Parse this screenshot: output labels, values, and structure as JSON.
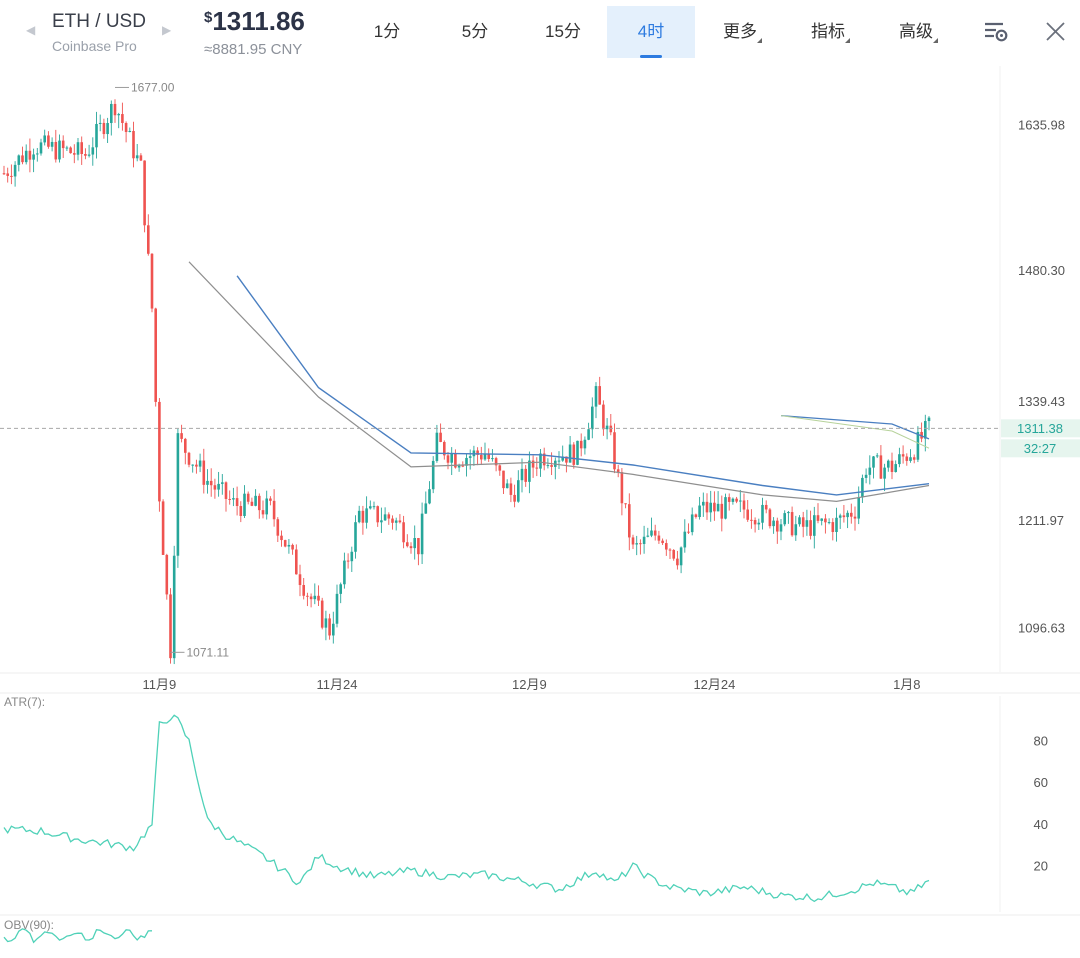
{
  "header": {
    "pair": "ETH / USD",
    "exchange": "Coinbase Pro",
    "currency_symbol": "$",
    "price": "1311.86",
    "converted": "≈8881.95 CNY",
    "timeframes": [
      {
        "label": "1分",
        "active": false,
        "dropdown": false
      },
      {
        "label": "5分",
        "active": false,
        "dropdown": false
      },
      {
        "label": "15分",
        "active": false,
        "dropdown": false
      },
      {
        "label": "4时",
        "active": true,
        "dropdown": false
      },
      {
        "label": "更多",
        "active": false,
        "dropdown": true
      },
      {
        "label": "指标",
        "active": false,
        "dropdown": true
      },
      {
        "label": "高级",
        "active": false,
        "dropdown": true
      }
    ],
    "icons": [
      "settings-list-icon",
      "close-icon"
    ]
  },
  "colors": {
    "up": "#26a69a",
    "down": "#ef5350",
    "ma_fast": "#4a7fc1",
    "ma_slow": "#8f8f8f",
    "atr": "#4fd1b8",
    "accent": "#2d7be0",
    "current_price_line": "#999999"
  },
  "chart_data": [
    {
      "type": "candlestick",
      "title": "",
      "y_ticks": [
        1635.98,
        1480.3,
        1339.43,
        1211.97,
        1096.63
      ],
      "x_ticks": [
        "11月9",
        "11月24",
        "12月9",
        "12月24",
        "1月8"
      ],
      "high_marker": "1677.00",
      "low_marker": "1071.11",
      "current_price": "1311.38",
      "countdown": "32:27",
      "ylim": [
        1050,
        1700
      ],
      "key_points": [
        {
          "bar": 0,
          "close": 1585
        },
        {
          "bar": 8,
          "close": 1615
        },
        {
          "bar": 22,
          "close": 1605
        },
        {
          "bar": 30,
          "close": 1660
        },
        {
          "bar": 37,
          "close": 1590
        },
        {
          "bar": 40,
          "close": 1440
        },
        {
          "bar": 42,
          "close": 1240
        },
        {
          "bar": 45,
          "close": 1075
        },
        {
          "bar": 47,
          "close": 1300
        },
        {
          "bar": 55,
          "close": 1255
        },
        {
          "bar": 62,
          "close": 1230
        },
        {
          "bar": 72,
          "close": 1225
        },
        {
          "bar": 82,
          "close": 1135
        },
        {
          "bar": 88,
          "close": 1095
        },
        {
          "bar": 96,
          "close": 1220
        },
        {
          "bar": 105,
          "close": 1215
        },
        {
          "bar": 112,
          "close": 1185
        },
        {
          "bar": 117,
          "close": 1295
        },
        {
          "bar": 122,
          "close": 1280
        },
        {
          "bar": 130,
          "close": 1285
        },
        {
          "bar": 137,
          "close": 1240
        },
        {
          "bar": 145,
          "close": 1282
        },
        {
          "bar": 155,
          "close": 1285
        },
        {
          "bar": 160,
          "close": 1345
        },
        {
          "bar": 164,
          "close": 1295
        },
        {
          "bar": 170,
          "close": 1180
        },
        {
          "bar": 177,
          "close": 1200
        },
        {
          "bar": 182,
          "close": 1175
        },
        {
          "bar": 188,
          "close": 1225
        },
        {
          "bar": 200,
          "close": 1225
        },
        {
          "bar": 208,
          "close": 1215
        },
        {
          "bar": 215,
          "close": 1205
        },
        {
          "bar": 225,
          "close": 1210
        },
        {
          "bar": 230,
          "close": 1225
        },
        {
          "bar": 233,
          "close": 1270
        },
        {
          "bar": 240,
          "close": 1270
        },
        {
          "bar": 246,
          "close": 1290
        },
        {
          "bar": 250,
          "close": 1312
        }
      ],
      "ma_fast": [
        [
          63,
          1475
        ],
        [
          85,
          1355
        ],
        [
          110,
          1285
        ],
        [
          145,
          1283
        ],
        [
          170,
          1272
        ],
        [
          205,
          1250
        ],
        [
          225,
          1240
        ],
        [
          250,
          1252
        ]
      ],
      "ma_slow": [
        [
          50,
          1490
        ],
        [
          85,
          1345
        ],
        [
          110,
          1270
        ],
        [
          145,
          1275
        ],
        [
          170,
          1262
        ],
        [
          205,
          1240
        ],
        [
          225,
          1233
        ],
        [
          250,
          1250
        ]
      ],
      "ma_tail": [
        [
          210,
          1325
        ],
        [
          240,
          1316
        ],
        [
          250,
          1300
        ]
      ]
    },
    {
      "type": "line",
      "title": "ATR(7):",
      "y_ticks": [
        80,
        60,
        40,
        20
      ],
      "ylim": [
        0,
        100
      ],
      "x": [
        0,
        10,
        20,
        28,
        35,
        40,
        42,
        45,
        47,
        50,
        55,
        60,
        70,
        80,
        85,
        90,
        100,
        110,
        120,
        130,
        140,
        150,
        160,
        165,
        170,
        175,
        180,
        190,
        200,
        210,
        220,
        225,
        230,
        235,
        240,
        245,
        250
      ],
      "values": [
        38,
        37,
        33,
        31,
        29,
        40,
        88,
        92,
        90,
        80,
        42,
        35,
        25,
        12,
        25,
        20,
        15,
        18,
        15,
        16,
        13,
        9,
        18,
        12,
        20,
        14,
        10,
        7,
        10,
        6,
        5,
        7,
        9,
        12,
        10,
        7,
        13
      ]
    },
    {
      "type": "line",
      "title": "OBV(90):"
    }
  ]
}
